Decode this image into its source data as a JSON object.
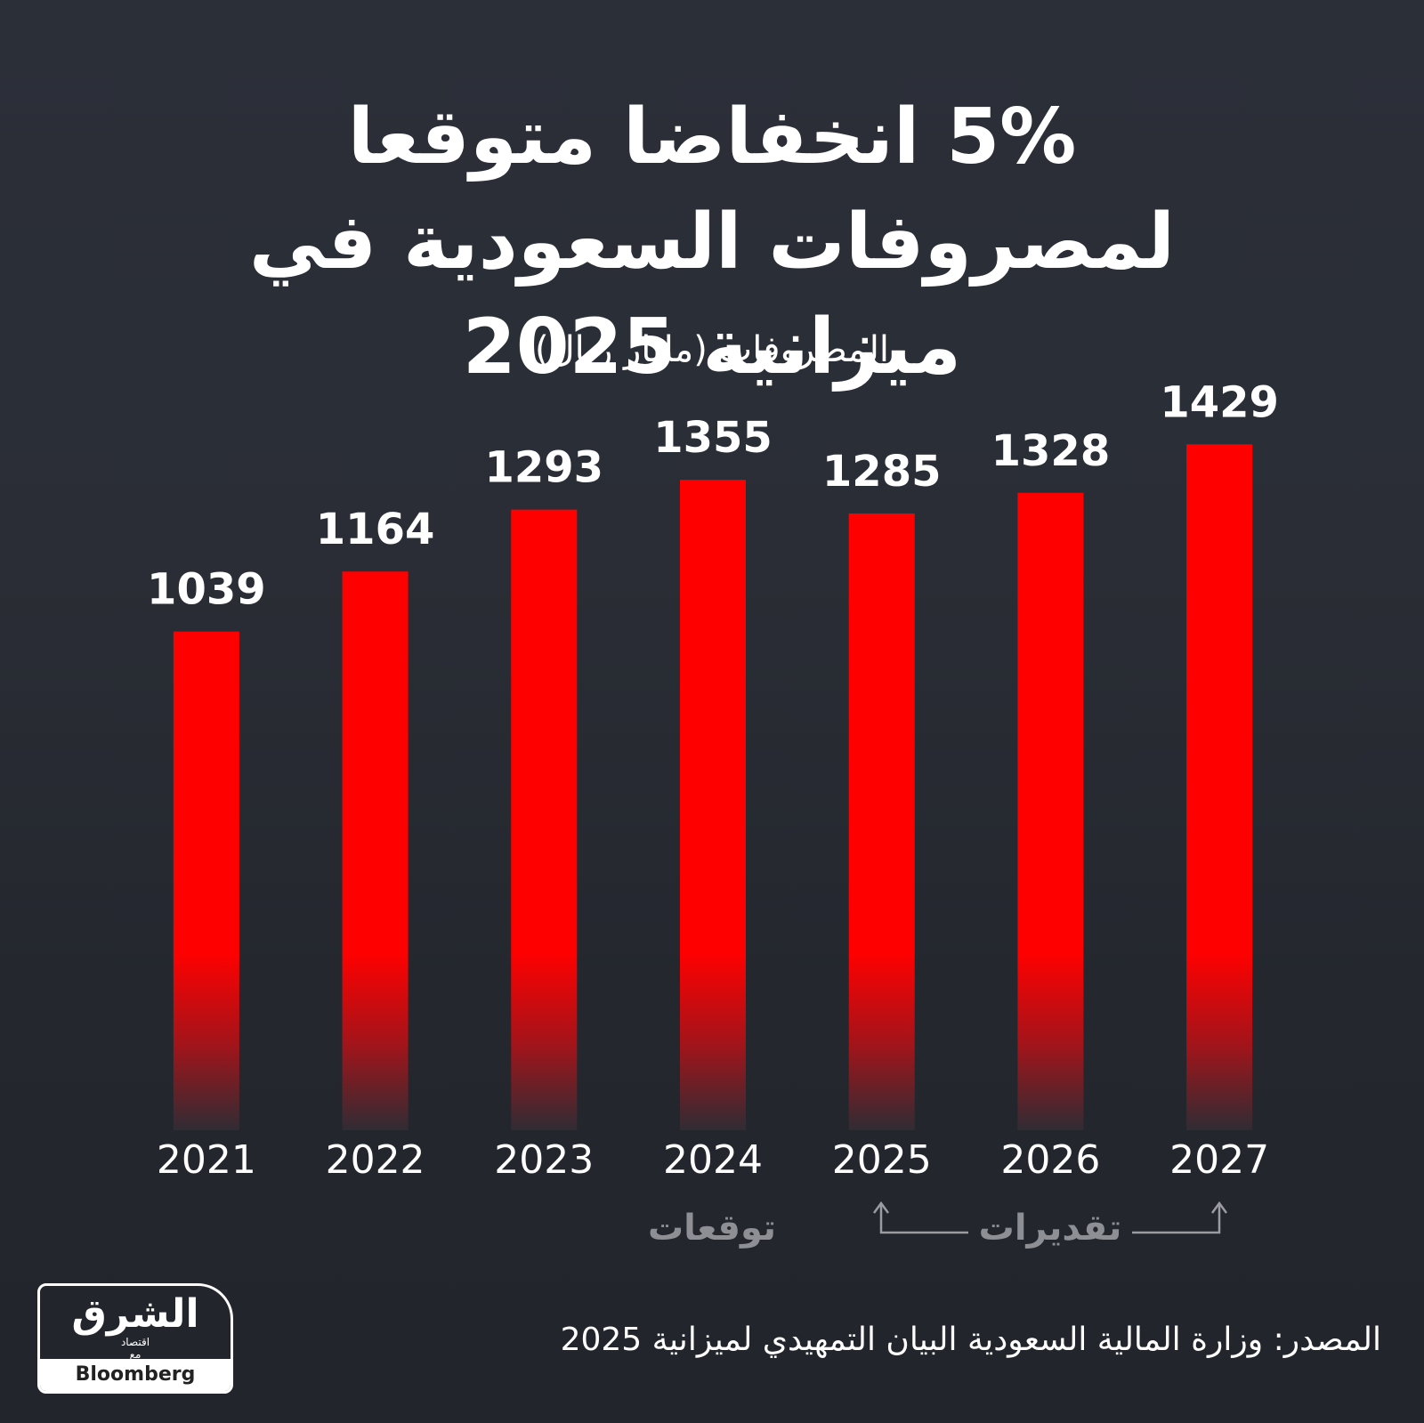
{
  "chart_data": {
    "type": "bar",
    "title": "5% انخفاضا متوقعا لمصروفات السعودية في ميزانية 2025",
    "subtitle": "المصروفات (مليار ريال)",
    "categories": [
      "2021",
      "2022",
      "2023",
      "2024",
      "2025",
      "2026",
      "2027"
    ],
    "values": [
      1039,
      1164,
      1293,
      1355,
      1285,
      1328,
      1429
    ],
    "color": "#ff0000",
    "ylim": [
      0,
      1500
    ],
    "grid": false,
    "annotations": [
      "توقعات",
      "تقديرات"
    ],
    "source": "المصدر: وزارة المالية السعودية البيان التمهيدي لميزانية 2025"
  },
  "logo": {
    "name": "الشرق",
    "sub": "اقتصاد",
    "with": "مع",
    "partner": "Bloomberg"
  }
}
